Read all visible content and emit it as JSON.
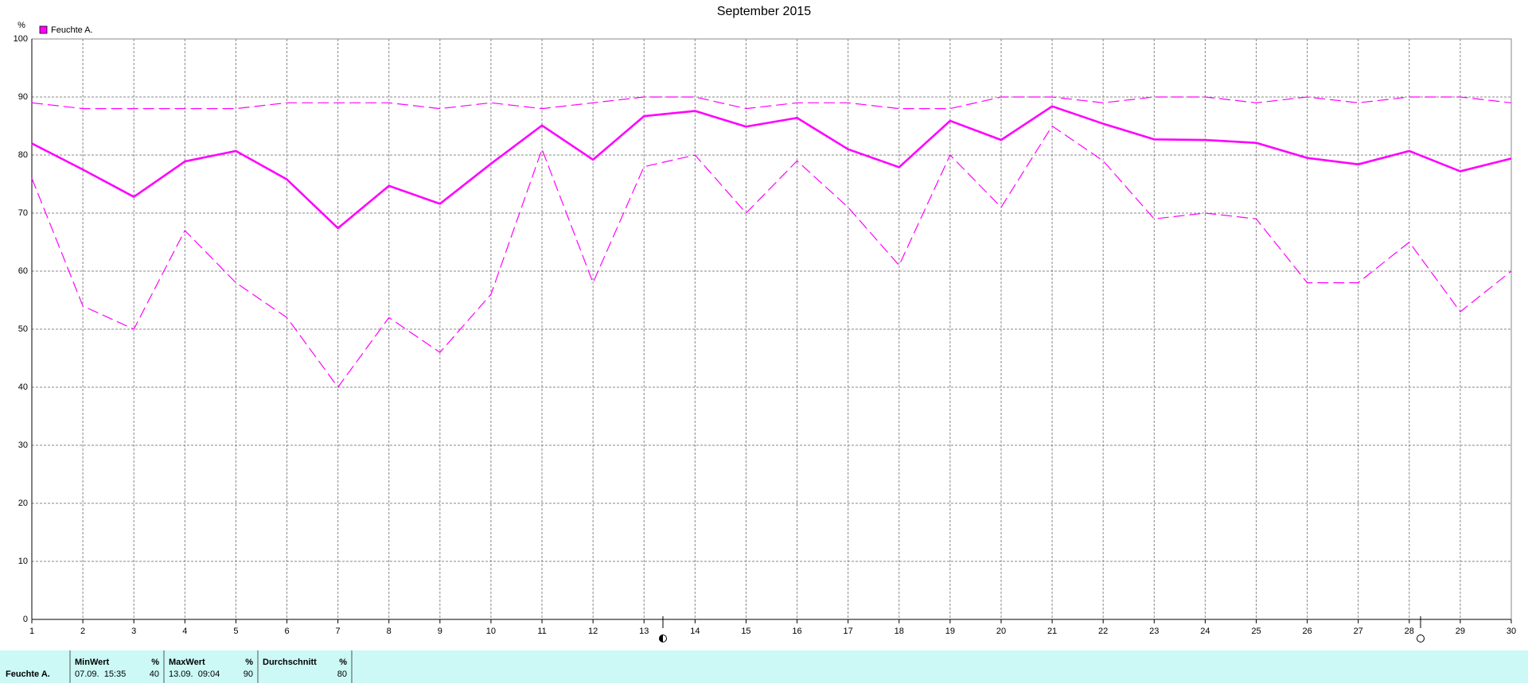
{
  "chart_data": {
    "type": "line",
    "title": "September 2015",
    "y_label": "%",
    "x": [
      1,
      2,
      3,
      4,
      5,
      6,
      7,
      8,
      9,
      10,
      11,
      12,
      13,
      14,
      15,
      16,
      17,
      18,
      19,
      20,
      21,
      22,
      23,
      24,
      25,
      26,
      27,
      28,
      29,
      30
    ],
    "xlim": [
      1,
      30
    ],
    "xticks": [
      1,
      2,
      3,
      4,
      5,
      6,
      7,
      8,
      9,
      10,
      11,
      12,
      13,
      14,
      15,
      16,
      17,
      18,
      19,
      20,
      21,
      22,
      23,
      24,
      25,
      26,
      27,
      28,
      29,
      30
    ],
    "ylim": [
      0,
      100
    ],
    "yticks": [
      0,
      10,
      20,
      30,
      40,
      50,
      60,
      70,
      80,
      90,
      100
    ],
    "grid": true,
    "legend": "top-left",
    "series": [
      {
        "name": "Feuchte A.",
        "color": "#ff00ff",
        "dash": false,
        "values": [
          82,
          77.5,
          72.8,
          78.9,
          80.7,
          75.8,
          67.4,
          74.7,
          71.6,
          78.5,
          85.1,
          79.2,
          86.7,
          87.6,
          84.9,
          86.4,
          81,
          77.9,
          85.9,
          82.6,
          88.4,
          85.4,
          82.7,
          82.6,
          82.1,
          79.5,
          78.4,
          80.7,
          77.2,
          79.4
        ]
      },
      {
        "color": "#ff00ff",
        "dash": true,
        "values": [
          89,
          88,
          88,
          88,
          88,
          89,
          89,
          89,
          88,
          89,
          88,
          89,
          90,
          90,
          88,
          89,
          89,
          88,
          88,
          90,
          90,
          89,
          90,
          90,
          89,
          90,
          89,
          90,
          90,
          89
        ]
      },
      {
        "color": "#ff00ff",
        "dash": true,
        "values": [
          76,
          54,
          50,
          67,
          58,
          52,
          40,
          52,
          46,
          56,
          81,
          58,
          78,
          80,
          70,
          79,
          71,
          61,
          80,
          71,
          85,
          79,
          69,
          70,
          69,
          58,
          58,
          65,
          53,
          60
        ]
      }
    ]
  },
  "stats": {
    "row_name": "Feuchte A.",
    "columns": [
      {
        "label": "MinWert",
        "unit": "%",
        "time": "07.09.  15:35",
        "value": 40
      },
      {
        "label": "MaxWert",
        "unit": "%",
        "time": "13.09.  09:04",
        "value": 90
      },
      {
        "label": "Durchschnitt",
        "unit": "%",
        "value": 80
      }
    ]
  }
}
